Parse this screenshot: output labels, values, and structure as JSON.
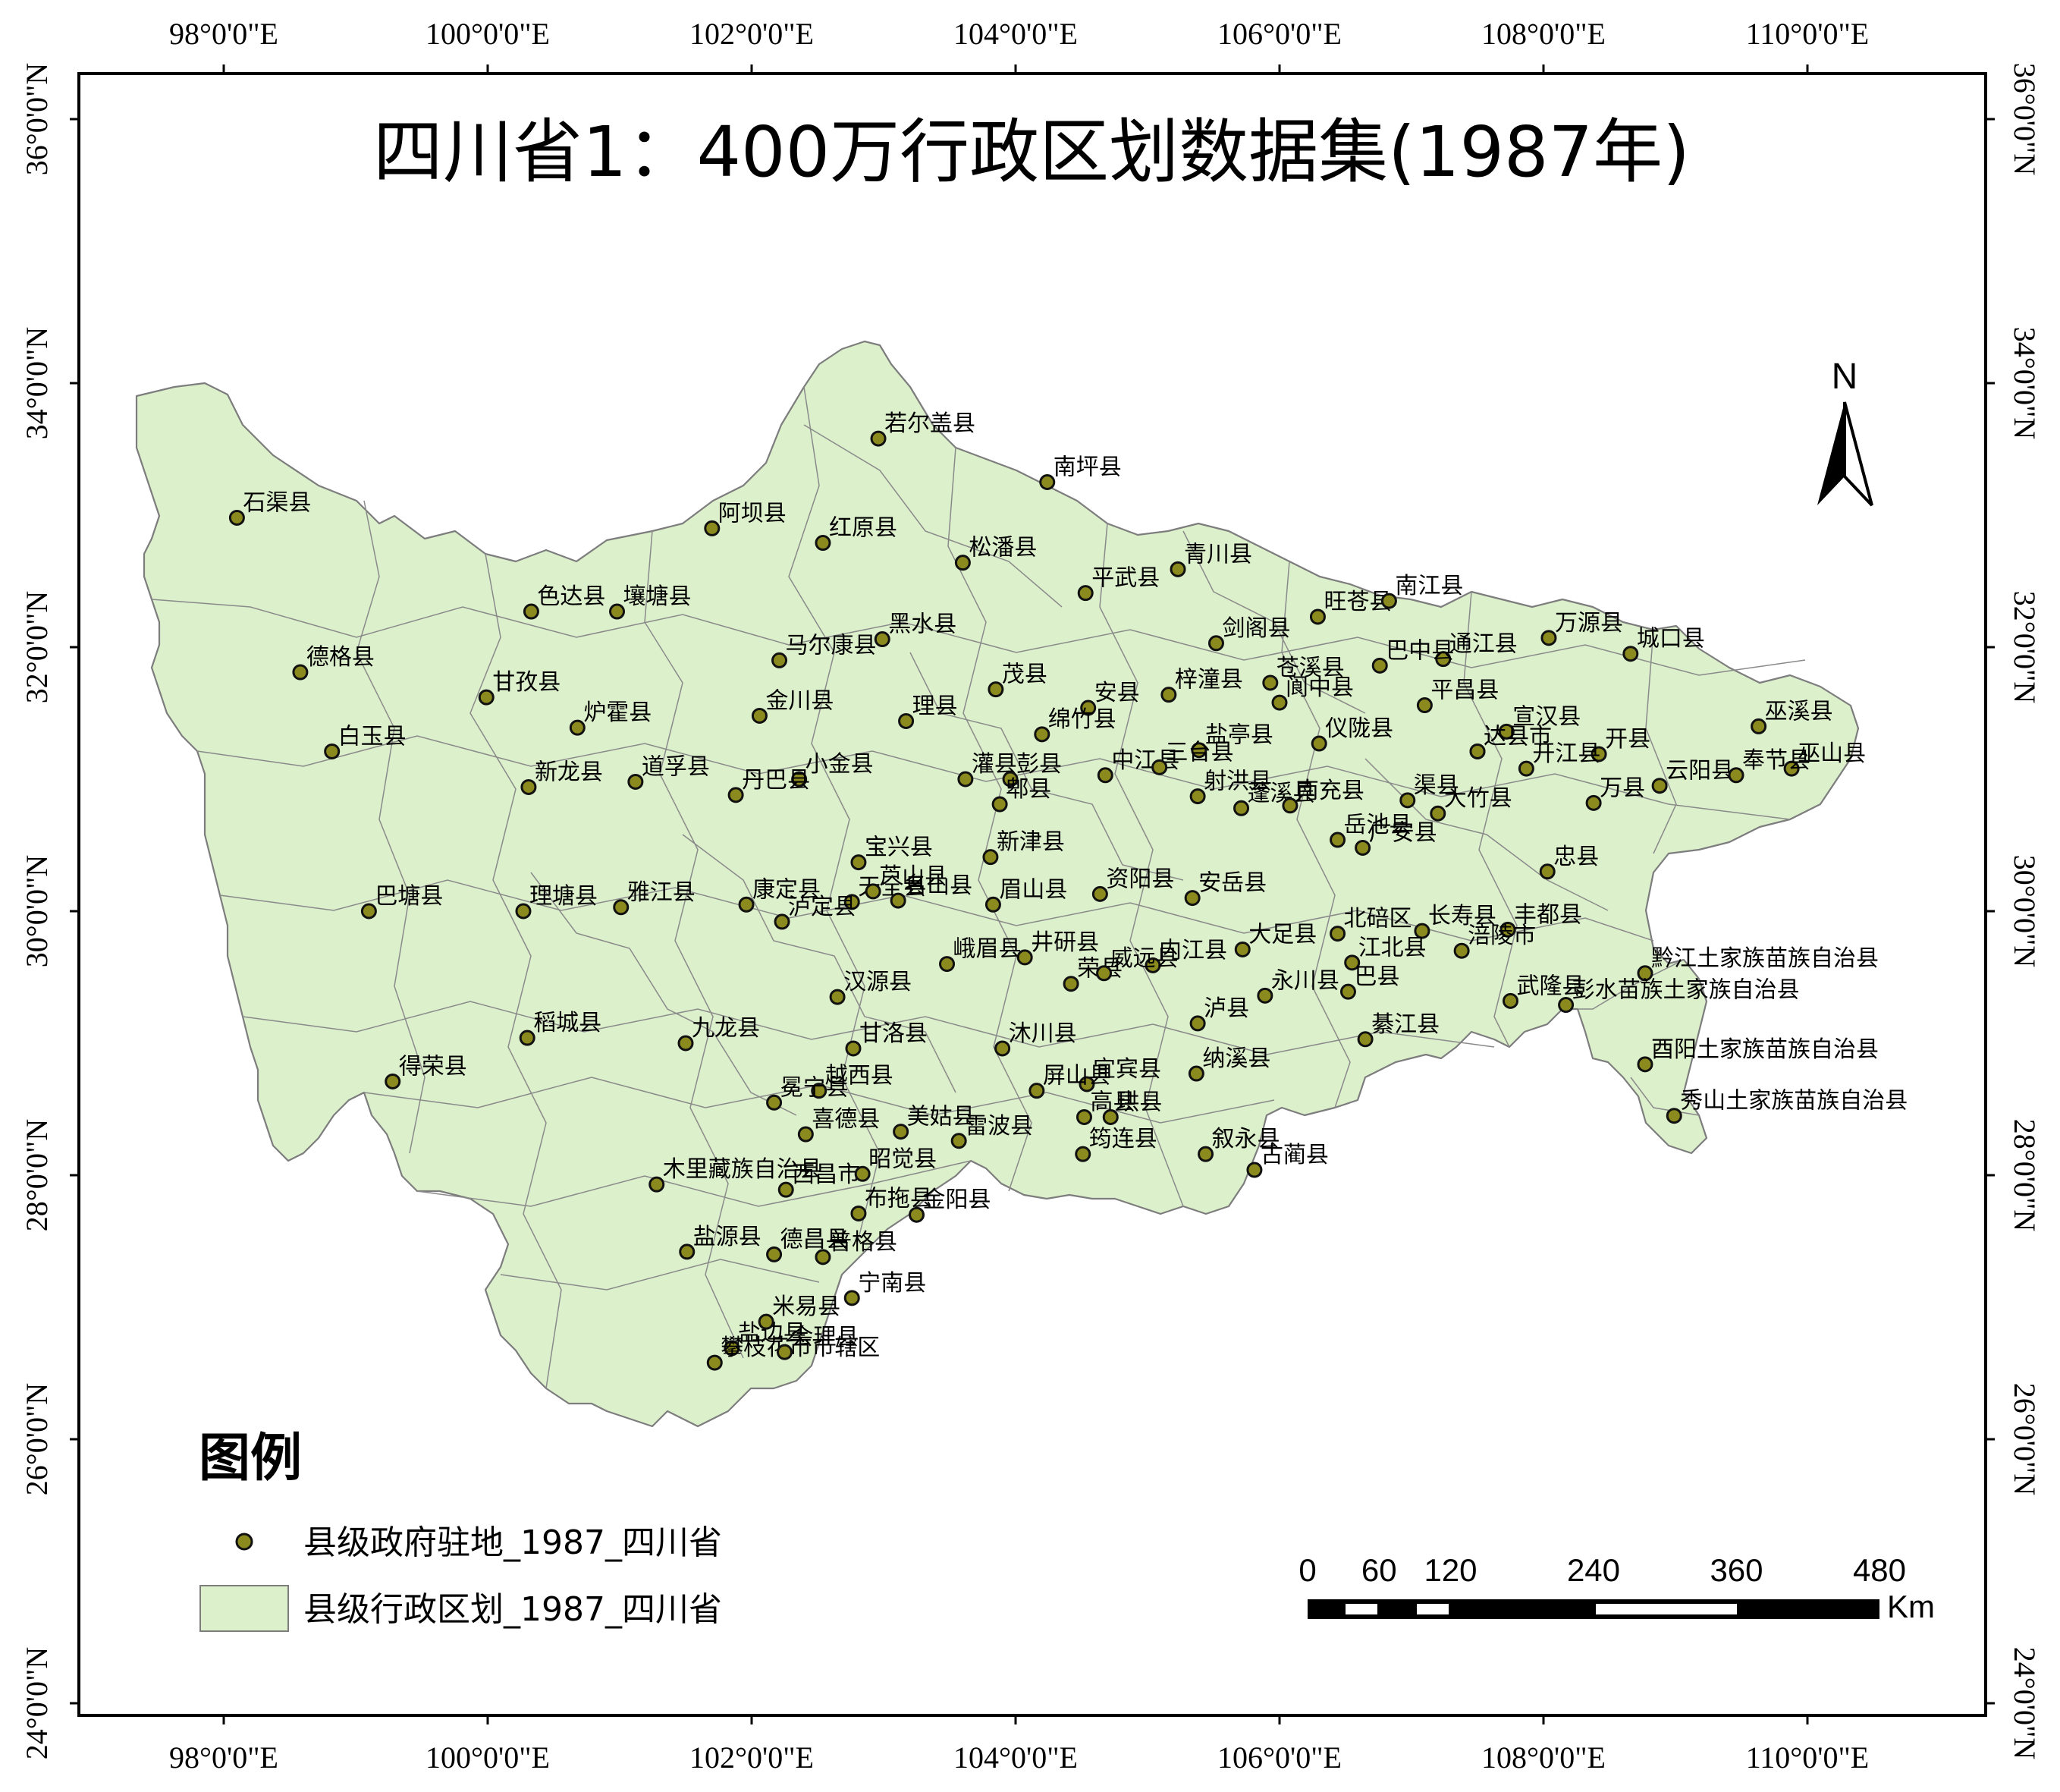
{
  "map": {
    "title": "四川省1：400万行政区划数据集(1987年)",
    "north_arrow_label": "N",
    "lon_ticks": [
      "98°0'0\"E",
      "100°0'0\"E",
      "102°0'0\"E",
      "104°0'0\"E",
      "106°0'0\"E",
      "108°0'0\"E",
      "110°0'0\"E"
    ],
    "lat_ticks": [
      "36°0'0\"N",
      "34°0'0\"N",
      "32°0'0\"N",
      "30°0'0\"N",
      "28°0'0\"N",
      "26°0'0\"N",
      "24°0'0\"N"
    ],
    "legend": {
      "title": "图例",
      "point_layer": "县级政府驻地_1987_四川省",
      "polygon_layer": "县级行政区划_1987_四川省",
      "point_color": "#8b8a1e",
      "polygon_color": "#dcf0cc"
    },
    "scale_bar": {
      "labels": [
        "0",
        "60",
        "120",
        "240",
        "360",
        "480"
      ],
      "unit": "Km"
    },
    "cities": [
      {
        "name": "若尔盖县",
        "lon": 102.96,
        "lat": 33.58
      },
      {
        "name": "南坪县",
        "lon": 104.24,
        "lat": 33.25
      },
      {
        "name": "石渠县",
        "lon": 98.1,
        "lat": 32.98
      },
      {
        "name": "阿坝县",
        "lon": 101.7,
        "lat": 32.9
      },
      {
        "name": "红原县",
        "lon": 102.54,
        "lat": 32.79
      },
      {
        "name": "松潘县",
        "lon": 103.6,
        "lat": 32.64
      },
      {
        "name": "平武县",
        "lon": 104.53,
        "lat": 32.41
      },
      {
        "name": "青川县",
        "lon": 105.23,
        "lat": 32.59
      },
      {
        "name": "色达县",
        "lon": 100.33,
        "lat": 32.27
      },
      {
        "name": "壤塘县",
        "lon": 100.98,
        "lat": 32.27
      },
      {
        "name": "旺苍县",
        "lon": 106.29,
        "lat": 32.23
      },
      {
        "name": "南江县",
        "lon": 106.83,
        "lat": 32.35
      },
      {
        "name": "黑水县",
        "lon": 102.99,
        "lat": 32.06
      },
      {
        "name": "马尔康县",
        "lon": 102.21,
        "lat": 31.9
      },
      {
        "name": "德格县",
        "lon": 98.58,
        "lat": 31.81
      },
      {
        "name": "甘孜县",
        "lon": 99.99,
        "lat": 31.62
      },
      {
        "name": "剑阁县",
        "lon": 105.52,
        "lat": 32.03
      },
      {
        "name": "通江县",
        "lon": 107.24,
        "lat": 31.91
      },
      {
        "name": "万源县",
        "lon": 108.04,
        "lat": 32.07
      },
      {
        "name": "城口县",
        "lon": 108.66,
        "lat": 31.95
      },
      {
        "name": "茂县",
        "lon": 103.85,
        "lat": 31.68
      },
      {
        "name": "安县",
        "lon": 104.55,
        "lat": 31.54
      },
      {
        "name": "苍溪县",
        "lon": 105.93,
        "lat": 31.73
      },
      {
        "name": "阆中县",
        "lon": 106.0,
        "lat": 31.58
      },
      {
        "name": "巴中县",
        "lon": 106.76,
        "lat": 31.86
      },
      {
        "name": "炉霍县",
        "lon": 100.68,
        "lat": 31.39
      },
      {
        "name": "金川县",
        "lon": 102.06,
        "lat": 31.48
      },
      {
        "name": "理县",
        "lon": 103.17,
        "lat": 31.44
      },
      {
        "name": "绵竹县",
        "lon": 104.2,
        "lat": 31.34
      },
      {
        "name": "梓潼县",
        "lon": 105.16,
        "lat": 31.64
      },
      {
        "name": "仪陇县",
        "lon": 106.3,
        "lat": 31.27
      },
      {
        "name": "平昌县",
        "lon": 107.1,
        "lat": 31.56
      },
      {
        "name": "达县",
        "lon": 107.5,
        "lat": 31.21
      },
      {
        "name": "宣汉县",
        "lon": 107.72,
        "lat": 31.36
      },
      {
        "name": "巫溪县",
        "lon": 109.63,
        "lat": 31.4
      },
      {
        "name": "白玉县",
        "lon": 98.82,
        "lat": 31.21
      },
      {
        "name": "新龙县",
        "lon": 100.31,
        "lat": 30.94
      },
      {
        "name": "道孚县",
        "lon": 101.12,
        "lat": 30.98
      },
      {
        "name": "小金县",
        "lon": 102.36,
        "lat": 31.0
      },
      {
        "name": "灌县",
        "lon": 103.62,
        "lat": 31.0
      },
      {
        "name": "彭县",
        "lon": 103.96,
        "lat": 31.0
      },
      {
        "name": "中江县",
        "lon": 104.68,
        "lat": 31.03
      },
      {
        "name": "盐亭县",
        "lon": 105.39,
        "lat": 31.22
      },
      {
        "name": "蓬溪县",
        "lon": 105.71,
        "lat": 30.78
      },
      {
        "name": "渠县",
        "lon": 106.97,
        "lat": 30.84
      },
      {
        "name": "达县市",
        "lon": 107.5,
        "lat": 31.21
      },
      {
        "name": "开县",
        "lon": 108.42,
        "lat": 31.19
      },
      {
        "name": "云阳县",
        "lon": 108.88,
        "lat": 30.95
      },
      {
        "name": "巫山县",
        "lon": 109.88,
        "lat": 31.08
      },
      {
        "name": "奉节县",
        "lon": 109.46,
        "lat": 31.03
      },
      {
        "name": "丹巴县",
        "lon": 101.88,
        "lat": 30.88
      },
      {
        "name": "郫县",
        "lon": 103.88,
        "lat": 30.81
      },
      {
        "name": "三台县",
        "lon": 105.09,
        "lat": 31.09
      },
      {
        "name": "射洪县",
        "lon": 105.38,
        "lat": 30.87
      },
      {
        "name": "开江县",
        "lon": 107.87,
        "lat": 31.08
      },
      {
        "name": "万县",
        "lon": 108.38,
        "lat": 30.82
      },
      {
        "name": "宝兴县",
        "lon": 102.81,
        "lat": 30.37
      },
      {
        "name": "新津县",
        "lon": 103.81,
        "lat": 30.41
      },
      {
        "name": "南充县",
        "lon": 106.08,
        "lat": 30.8
      },
      {
        "name": "大竹县",
        "lon": 107.2,
        "lat": 30.74
      },
      {
        "name": "忠县",
        "lon": 108.03,
        "lat": 30.3
      },
      {
        "name": "巴塘县",
        "lon": 99.1,
        "lat": 30.0
      },
      {
        "name": "理塘县",
        "lon": 100.27,
        "lat": 30.0
      },
      {
        "name": "雅江县",
        "lon": 101.01,
        "lat": 30.03
      },
      {
        "name": "天全县",
        "lon": 102.76,
        "lat": 30.07
      },
      {
        "name": "名山县",
        "lon": 103.11,
        "lat": 30.08
      },
      {
        "name": "眉山县",
        "lon": 103.83,
        "lat": 30.05
      },
      {
        "name": "资阳县",
        "lon": 104.64,
        "lat": 30.13
      },
      {
        "name": "安岳县",
        "lon": 105.34,
        "lat": 30.1
      },
      {
        "name": "岳池县",
        "lon": 106.44,
        "lat": 30.54
      },
      {
        "name": "广安县",
        "lon": 106.63,
        "lat": 30.48
      },
      {
        "name": "丰都县",
        "lon": 107.73,
        "lat": 29.86
      },
      {
        "name": "康定县",
        "lon": 101.96,
        "lat": 30.05
      },
      {
        "name": "泸定县",
        "lon": 102.23,
        "lat": 29.92
      },
      {
        "name": "芦山县",
        "lon": 102.92,
        "lat": 30.15
      },
      {
        "name": "井研县",
        "lon": 104.07,
        "lat": 29.65
      },
      {
        "name": "内江县",
        "lon": 105.04,
        "lat": 29.59
      },
      {
        "name": "大足县",
        "lon": 105.72,
        "lat": 29.71
      },
      {
        "name": "北碚区",
        "lon": 106.44,
        "lat": 29.83
      },
      {
        "name": "长寿县",
        "lon": 107.08,
        "lat": 29.85
      },
      {
        "name": "黔江土家族苗族自治县",
        "lon": 108.77,
        "lat": 29.53
      },
      {
        "name": "荣县",
        "lon": 104.42,
        "lat": 29.45
      },
      {
        "name": "汉源县",
        "lon": 102.65,
        "lat": 29.35
      },
      {
        "name": "峨眉县",
        "lon": 103.48,
        "lat": 29.6
      },
      {
        "name": "江北县",
        "lon": 106.55,
        "lat": 29.61
      },
      {
        "name": "巴县",
        "lon": 106.52,
        "lat": 29.39
      },
      {
        "name": "涪陵市",
        "lon": 107.38,
        "lat": 29.7
      },
      {
        "name": "武隆县",
        "lon": 107.75,
        "lat": 29.32
      },
      {
        "name": "稻城县",
        "lon": 100.3,
        "lat": 29.04
      },
      {
        "name": "九龙县",
        "lon": 101.5,
        "lat": 29.0
      },
      {
        "name": "甘洛县",
        "lon": 102.77,
        "lat": 28.96
      },
      {
        "name": "沐川县",
        "lon": 103.9,
        "lat": 28.96
      },
      {
        "name": "威远县",
        "lon": 104.67,
        "lat": 29.53
      },
      {
        "name": "泸县",
        "lon": 105.38,
        "lat": 29.15
      },
      {
        "name": "永川县",
        "lon": 105.89,
        "lat": 29.36
      },
      {
        "name": "綦江县",
        "lon": 106.65,
        "lat": 29.03
      },
      {
        "name": "彭水苗族土家族自治县",
        "lon": 108.17,
        "lat": 29.29
      },
      {
        "name": "得荣县",
        "lon": 99.28,
        "lat": 28.71
      },
      {
        "name": "越西县",
        "lon": 102.51,
        "lat": 28.64
      },
      {
        "name": "冕宁县",
        "lon": 102.17,
        "lat": 28.55
      },
      {
        "name": "宜宾县",
        "lon": 104.54,
        "lat": 28.69
      },
      {
        "name": "纳溪县",
        "lon": 105.37,
        "lat": 28.77
      },
      {
        "name": "酉阳土家族苗族自治县",
        "lon": 108.77,
        "lat": 28.84
      },
      {
        "name": "秀山土家族苗族自治县",
        "lon": 108.99,
        "lat": 28.45
      },
      {
        "name": "喜德县",
        "lon": 102.41,
        "lat": 28.31
      },
      {
        "name": "美姑县",
        "lon": 103.13,
        "lat": 28.33
      },
      {
        "name": "屏山县",
        "lon": 104.16,
        "lat": 28.64
      },
      {
        "name": "高县",
        "lon": 104.52,
        "lat": 28.44
      },
      {
        "name": "珙县",
        "lon": 104.72,
        "lat": 28.44
      },
      {
        "name": "叙永县",
        "lon": 105.44,
        "lat": 28.16
      },
      {
        "name": "木里藏族自治县",
        "lon": 101.28,
        "lat": 27.93
      },
      {
        "name": "西昌市",
        "lon": 102.26,
        "lat": 27.89
      },
      {
        "name": "昭觉县",
        "lon": 102.84,
        "lat": 28.01
      },
      {
        "name": "雷波县",
        "lon": 103.57,
        "lat": 28.26
      },
      {
        "name": "筠连县",
        "lon": 104.51,
        "lat": 28.16
      },
      {
        "name": "古蔺县",
        "lon": 105.81,
        "lat": 28.04
      },
      {
        "name": "布拖县",
        "lon": 102.81,
        "lat": 27.71
      },
      {
        "name": "普格县",
        "lon": 102.54,
        "lat": 27.38
      },
      {
        "name": "金阳县",
        "lon": 103.25,
        "lat": 27.7
      },
      {
        "name": "盐源县",
        "lon": 101.51,
        "lat": 27.42
      },
      {
        "name": "德昌县",
        "lon": 102.17,
        "lat": 27.4
      },
      {
        "name": "宁南县",
        "lon": 102.76,
        "lat": 27.07
      },
      {
        "name": "盐边县",
        "lon": 101.85,
        "lat": 26.69
      },
      {
        "name": "米易县",
        "lon": 102.11,
        "lat": 26.89
      },
      {
        "name": "攀枝花市市辖区",
        "lon": 101.72,
        "lat": 26.58
      },
      {
        "name": "会理县",
        "lon": 102.25,
        "lat": 26.66
      }
    ]
  }
}
